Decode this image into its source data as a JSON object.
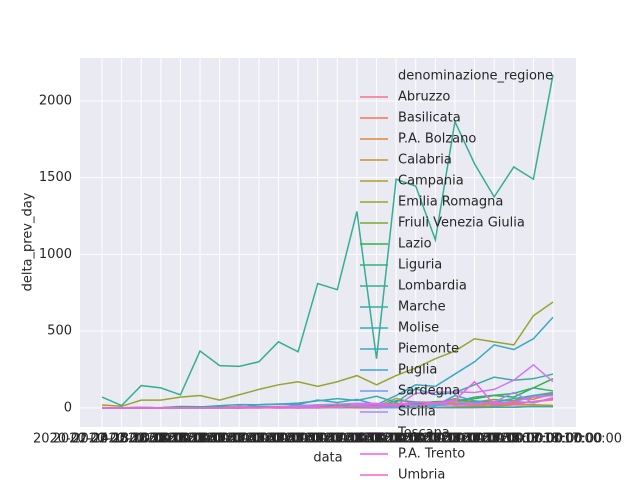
{
  "chart_data": {
    "type": "line",
    "x_label": "data",
    "y_label": "delta_prev_day",
    "legend_title": "denominazione_regione",
    "categories": [
      "2020-02-24 18:00:00",
      "2020-02-25 18:00:00",
      "2020-02-26 18:00:00",
      "2020-02-27 18:00:00",
      "2020-02-28 18:00:00",
      "2020-02-29 17:00:00",
      "2020-03-01 17:00:00",
      "2020-03-02 17:00:00",
      "2020-03-03 17:00:00",
      "2020-03-04 17:00:00",
      "2020-03-05 17:00:00",
      "2020-03-06 17:00:00",
      "2020-03-07 18:00:00",
      "2020-03-08 18:00:00",
      "2020-03-09 18:00:00",
      "2020-03-10 18:00:00",
      "2020-03-11 17:00:00",
      "2020-03-12 17:00:00",
      "2020-03-13 17:00:00",
      "2020-03-14 17:00:00",
      "2020-03-15 17:00:00",
      "2020-03-16 17:00:00",
      "2020-03-17 17:00:00",
      "2020-03-18 17:00:00"
    ],
    "ylim": [
      -125,
      2280
    ],
    "yticks": [
      0,
      500,
      1000,
      1500,
      2000
    ],
    "grid": true,
    "legend": "upper right",
    "series": [
      {
        "name": "Abruzzo",
        "color": "#f77189",
        "values": [
          0,
          0,
          1,
          0,
          3,
          1,
          1,
          4,
          2,
          5,
          0,
          8,
          8,
          3,
          10,
          7,
          11,
          17,
          22,
          15,
          26,
          30,
          40,
          52
        ]
      },
      {
        "name": "Basilicata",
        "color": "#f7754f",
        "values": [
          0,
          0,
          0,
          0,
          0,
          0,
          0,
          0,
          1,
          0,
          0,
          0,
          2,
          0,
          0,
          2,
          1,
          3,
          2,
          1,
          4,
          5,
          9,
          7
        ]
      },
      {
        "name": "P.A. Bolzano",
        "color": "#dc8932",
        "values": [
          0,
          0,
          0,
          0,
          1,
          0,
          0,
          1,
          0,
          2,
          6,
          0,
          1,
          4,
          8,
          15,
          21,
          24,
          30,
          36,
          18,
          30,
          40,
          55
        ]
      },
      {
        "name": "Calabria",
        "color": "#c39532",
        "values": [
          0,
          0,
          0,
          0,
          0,
          1,
          0,
          0,
          0,
          0,
          1,
          1,
          1,
          5,
          0,
          2,
          8,
          4,
          6,
          10,
          12,
          19,
          20,
          16
        ]
      },
      {
        "name": "Campania",
        "color": "#ae9d31",
        "values": [
          0,
          0,
          3,
          0,
          1,
          0,
          13,
          0,
          6,
          9,
          0,
          4,
          14,
          19,
          10,
          61,
          29,
          16,
          44,
          42,
          40,
          60,
          56,
          91
        ]
      },
      {
        "name": "Emilia Romagna",
        "color": "#97a431",
        "values": [
          18,
          10,
          50,
          50,
          70,
          80,
          50,
          85,
          120,
          150,
          170,
          140,
          170,
          210,
          150,
          210,
          260,
          320,
          370,
          450,
          430,
          410,
          600,
          690
        ]
      },
      {
        "name": "Friuli Venezia Giulia",
        "color": "#77ab31",
        "values": [
          0,
          0,
          0,
          0,
          6,
          3,
          9,
          1,
          5,
          3,
          18,
          10,
          11,
          12,
          14,
          30,
          20,
          28,
          60,
          37,
          54,
          45,
          80,
          100
        ]
      },
      {
        "name": "Lazio",
        "color": "#31b33e",
        "values": [
          1,
          0,
          0,
          0,
          0,
          0,
          0,
          0,
          3,
          8,
          5,
          6,
          10,
          10,
          15,
          20,
          27,
          40,
          43,
          60,
          80,
          70,
          130,
          190
        ]
      },
      {
        "name": "Liguria",
        "color": "#33b07a",
        "values": [
          0,
          0,
          0,
          1,
          9,
          7,
          1,
          6,
          8,
          7,
          0,
          1,
          26,
          9,
          1,
          47,
          39,
          35,
          40,
          70,
          82,
          94,
          130,
          110
        ]
      },
      {
        "name": "Lombardia",
        "color": "#35ae93",
        "values": [
          70,
          15,
          145,
          130,
          85,
          370,
          275,
          270,
          300,
          430,
          365,
          810,
          770,
          1280,
          320,
          1490,
          1445,
          1095,
          1865,
          1590,
          1375,
          1570,
          1490,
          2170
        ]
      },
      {
        "name": "Marche",
        "color": "#36ada4",
        "values": [
          0,
          0,
          0,
          0,
          6,
          5,
          14,
          21,
          20,
          24,
          31,
          45,
          60,
          48,
          75,
          35,
          125,
          85,
          100,
          150,
          200,
          180,
          190,
          220
        ]
      },
      {
        "name": "Molise",
        "color": "#37abb4",
        "values": [
          0,
          0,
          0,
          0,
          0,
          0,
          0,
          0,
          1,
          0,
          0,
          7,
          1,
          6,
          0,
          2,
          1,
          2,
          1,
          3,
          5,
          4,
          9,
          8
        ]
      },
      {
        "name": "Piemonte",
        "color": "#38a9c5",
        "values": [
          0,
          0,
          3,
          0,
          0,
          1,
          8,
          0,
          21,
          25,
          22,
          51,
          35,
          55,
          20,
          80,
          150,
          140,
          220,
          300,
          410,
          380,
          450,
          590
        ]
      },
      {
        "name": "Puglia",
        "color": "#3aa5df",
        "values": [
          0,
          0,
          0,
          0,
          1,
          0,
          2,
          0,
          2,
          5,
          16,
          3,
          6,
          14,
          1,
          18,
          26,
          13,
          80,
          45,
          35,
          60,
          80,
          91
        ]
      },
      {
        "name": "Sardegna",
        "color": "#6e9bf4",
        "values": [
          0,
          0,
          0,
          0,
          0,
          0,
          0,
          0,
          0,
          2,
          0,
          0,
          7,
          9,
          1,
          1,
          18,
          17,
          20,
          32,
          28,
          41,
          32,
          62
        ]
      },
      {
        "name": "Sicilia",
        "color": "#a48cf4",
        "values": [
          0,
          0,
          3,
          0,
          0,
          0,
          1,
          0,
          3,
          1,
          5,
          7,
          0,
          20,
          20,
          26,
          15,
          27,
          43,
          25,
          37,
          100,
          31,
          67
        ]
      },
      {
        "name": "Toscana",
        "color": "#cc7af4",
        "values": [
          0,
          0,
          2,
          0,
          0,
          0,
          0,
          10,
          3,
          8,
          13,
          20,
          23,
          29,
          29,
          13,
          95,
          102,
          104,
          100,
          120,
          180,
          280,
          170
        ]
      },
      {
        "name": "P.A. Trento",
        "color": "#f45cf2",
        "values": [
          0,
          0,
          0,
          0,
          0,
          0,
          1,
          0,
          3,
          0,
          1,
          2,
          7,
          11,
          23,
          20,
          38,
          31,
          50,
          170,
          20,
          40,
          70,
          80
        ]
      },
      {
        "name": "Umbria",
        "color": "#f565cc",
        "values": [
          0,
          0,
          0,
          0,
          0,
          0,
          0,
          2,
          0,
          6,
          1,
          1,
          8,
          11,
          7,
          19,
          12,
          33,
          17,
          23,
          39,
          20,
          41,
          58
        ]
      }
    ]
  }
}
